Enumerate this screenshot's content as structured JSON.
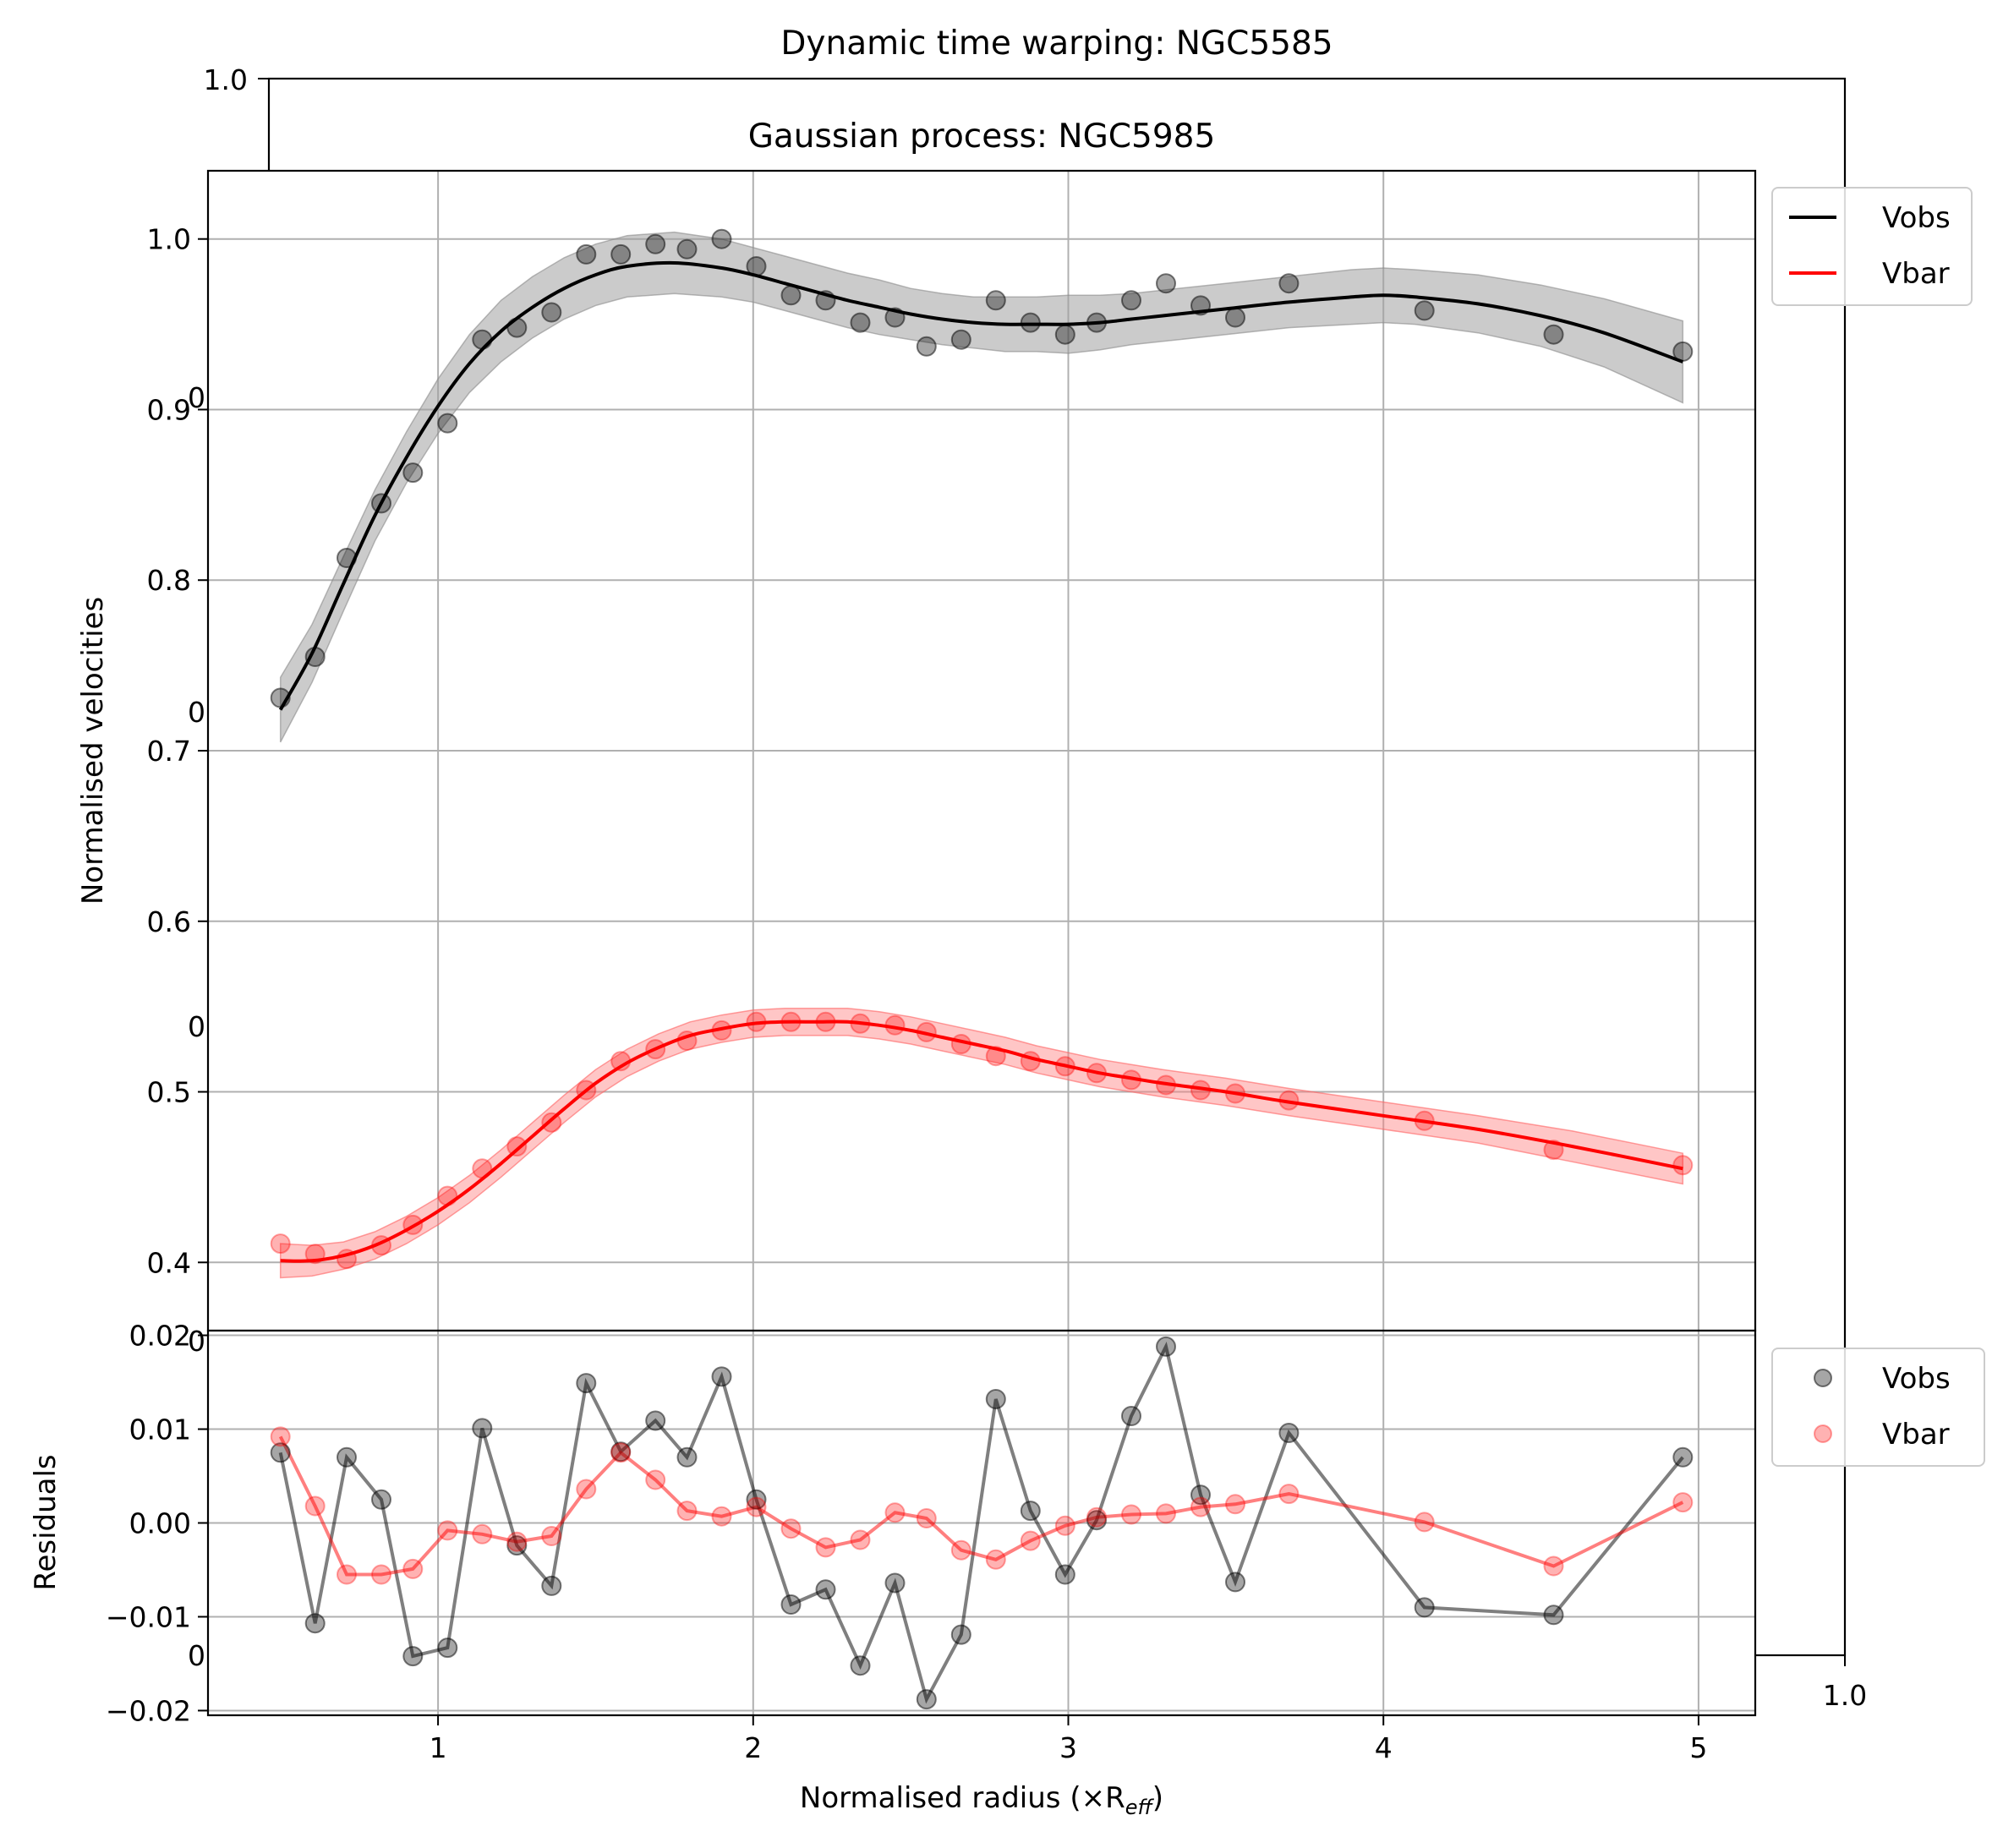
{
  "chart_data": [
    {
      "id": "background_axes",
      "type": "axes",
      "title": "Dynamic time warping: NGC5585",
      "tick_labels_visible": [
        "1.0",
        "1.0",
        "0",
        "0",
        "0",
        "0",
        "0"
      ],
      "xlim": [
        0,
        1
      ],
      "ylim": [
        0,
        1
      ]
    },
    {
      "id": "gp_panel",
      "type": "line",
      "title": "Gaussian process: NGC5985",
      "xlabel": "Normalised radius (×R",
      "xlabel_sub": "eff",
      "xlabel_close": ")",
      "ylabel": "Normalised velocities",
      "xlim": [
        0.27,
        5.18
      ],
      "ylim": [
        0.36,
        1.04
      ],
      "yticks": [
        0.4,
        0.5,
        0.6,
        0.7,
        0.8,
        0.9,
        1.0
      ],
      "ytick_labels": [
        "0.4",
        "0.5",
        "0.6",
        "0.7",
        "0.8",
        "0.9",
        "1.0"
      ],
      "grid": true,
      "legend": {
        "position": "outside-top-right",
        "entries": [
          "Vobs",
          "Vbar"
        ]
      },
      "x": [
        0.5,
        0.61,
        0.71,
        0.82,
        0.92,
        1.03,
        1.14,
        1.25,
        1.36,
        1.47,
        1.58,
        1.69,
        1.79,
        1.9,
        2.01,
        2.12,
        2.23,
        2.34,
        2.45,
        2.55,
        2.66,
        2.77,
        2.88,
        2.99,
        3.09,
        3.2,
        3.31,
        3.42,
        3.53,
        3.7,
        4.13,
        4.54,
        4.95
      ],
      "series": [
        {
          "name": "Vobs",
          "color": "#000000",
          "points": [
            0.731,
            0.755,
            0.813,
            0.845,
            0.863,
            0.892,
            0.941,
            0.948,
            0.957,
            0.991,
            0.991,
            0.997,
            0.994,
            1.0,
            0.984,
            0.967,
            0.964,
            0.951,
            0.954,
            0.937,
            0.941,
            0.964,
            0.951,
            0.944,
            0.951,
            0.964,
            0.974,
            0.961,
            0.954,
            0.974,
            0.958,
            0.944,
            0.934
          ],
          "fit_x": [
            0.5,
            0.6,
            0.7,
            0.8,
            0.9,
            1.0,
            1.1,
            1.2,
            1.3,
            1.4,
            1.5,
            1.6,
            1.75,
            1.9,
            2.0,
            2.1,
            2.2,
            2.3,
            2.4,
            2.5,
            2.6,
            2.7,
            2.8,
            2.9,
            3.0,
            3.1,
            3.2,
            3.3,
            3.5,
            3.7,
            3.9,
            4.0,
            4.1,
            4.3,
            4.5,
            4.7,
            4.95
          ],
          "fit": [
            0.724,
            0.757,
            0.798,
            0.838,
            0.872,
            0.902,
            0.927,
            0.946,
            0.96,
            0.971,
            0.979,
            0.984,
            0.986,
            0.983,
            0.979,
            0.974,
            0.969,
            0.964,
            0.96,
            0.956,
            0.953,
            0.951,
            0.95,
            0.95,
            0.95,
            0.951,
            0.953,
            0.955,
            0.959,
            0.963,
            0.966,
            0.967,
            0.966,
            0.962,
            0.955,
            0.945,
            0.928
          ],
          "band_halfwidth": [
            0.019,
            0.017,
            0.016,
            0.015,
            0.015,
            0.016,
            0.017,
            0.018,
            0.018,
            0.018,
            0.018,
            0.018,
            0.018,
            0.017,
            0.016,
            0.016,
            0.016,
            0.016,
            0.016,
            0.015,
            0.015,
            0.015,
            0.016,
            0.016,
            0.017,
            0.016,
            0.015,
            0.015,
            0.015,
            0.015,
            0.016,
            0.016,
            0.016,
            0.017,
            0.018,
            0.02,
            0.024
          ]
        },
        {
          "name": "Vbar",
          "color": "#ff0000",
          "points": [
            0.411,
            0.405,
            0.402,
            0.41,
            0.422,
            0.439,
            0.455,
            0.468,
            0.482,
            0.501,
            0.518,
            0.525,
            0.53,
            0.536,
            0.541,
            0.541,
            0.541,
            0.54,
            0.539,
            0.535,
            0.528,
            0.521,
            0.518,
            0.515,
            0.511,
            0.507,
            0.504,
            0.501,
            0.499,
            0.495,
            0.483,
            0.466,
            0.457
          ],
          "fit_x": [
            0.5,
            0.6,
            0.7,
            0.8,
            0.9,
            1.0,
            1.1,
            1.2,
            1.3,
            1.4,
            1.5,
            1.6,
            1.7,
            1.8,
            1.9,
            2.0,
            2.1,
            2.2,
            2.3,
            2.4,
            2.5,
            2.6,
            2.7,
            2.8,
            2.9,
            3.0,
            3.1,
            3.2,
            3.3,
            3.5,
            3.7,
            4.0,
            4.3,
            4.6,
            4.95
          ],
          "fit": [
            0.401,
            0.401,
            0.404,
            0.41,
            0.419,
            0.43,
            0.443,
            0.458,
            0.474,
            0.49,
            0.505,
            0.517,
            0.526,
            0.533,
            0.537,
            0.54,
            0.541,
            0.541,
            0.541,
            0.539,
            0.536,
            0.532,
            0.528,
            0.524,
            0.519,
            0.515,
            0.511,
            0.508,
            0.505,
            0.5,
            0.494,
            0.486,
            0.478,
            0.468,
            0.455
          ],
          "band_halfwidth": [
            0.01,
            0.009,
            0.008,
            0.008,
            0.008,
            0.008,
            0.008,
            0.008,
            0.008,
            0.008,
            0.008,
            0.008,
            0.008,
            0.008,
            0.008,
            0.008,
            0.008,
            0.008,
            0.008,
            0.008,
            0.008,
            0.008,
            0.008,
            0.008,
            0.008,
            0.008,
            0.008,
            0.008,
            0.008,
            0.008,
            0.008,
            0.008,
            0.008,
            0.009,
            0.009
          ]
        }
      ]
    },
    {
      "id": "residual_panel",
      "type": "line",
      "xlabel": "Normalised radius (×R",
      "ylabel": "Residuals",
      "xlim": [
        0.27,
        5.18
      ],
      "ylim": [
        -0.0205,
        0.0205
      ],
      "xticks": [
        1,
        2,
        3,
        4,
        5
      ],
      "xtick_labels": [
        "1",
        "2",
        "3",
        "4",
        "5"
      ],
      "yticks": [
        -0.02,
        -0.01,
        0.0,
        0.01,
        0.02
      ],
      "ytick_labels": [
        "−0.02",
        "−0.01",
        "0.00",
        "0.01",
        "0.02"
      ],
      "grid": true,
      "legend": {
        "position": "outside-right",
        "entries": [
          "Vobs",
          "Vbar"
        ]
      },
      "x": [
        0.5,
        0.61,
        0.71,
        0.82,
        0.92,
        1.03,
        1.14,
        1.25,
        1.36,
        1.47,
        1.58,
        1.69,
        1.79,
        1.9,
        2.01,
        2.12,
        2.23,
        2.34,
        2.45,
        2.55,
        2.66,
        2.77,
        2.88,
        2.99,
        3.09,
        3.2,
        3.31,
        3.42,
        3.53,
        3.7,
        4.13,
        4.54,
        4.95
      ],
      "series": [
        {
          "name": "Vobs",
          "color": "#000000",
          "values": [
            0.0075,
            -0.0107,
            0.007,
            0.0025,
            -0.0142,
            -0.0133,
            0.0101,
            -0.0024,
            -0.0067,
            0.0149,
            0.0076,
            0.0109,
            0.007,
            0.0156,
            0.0025,
            -0.0087,
            -0.0071,
            -0.0152,
            -0.0064,
            -0.0188,
            -0.0119,
            0.0132,
            0.0013,
            -0.0055,
            0.0003,
            0.0114,
            0.0188,
            0.003,
            -0.0063,
            0.0096,
            -0.009,
            -0.0098,
            0.007
          ]
        },
        {
          "name": "Vbar",
          "color": "#ff0000",
          "values": [
            0.0092,
            0.0018,
            -0.0055,
            -0.0055,
            -0.0049,
            -0.0008,
            -0.0012,
            -0.002,
            -0.0014,
            0.0036,
            0.0075,
            0.0046,
            0.0013,
            0.0007,
            0.0017,
            -0.0006,
            -0.0026,
            -0.0018,
            0.0011,
            0.0005,
            -0.0029,
            -0.0039,
            -0.0019,
            -0.0003,
            0.0006,
            0.0009,
            0.001,
            0.0017,
            0.002,
            0.0031,
            0.0001,
            -0.0046,
            0.0022
          ]
        }
      ]
    }
  ]
}
